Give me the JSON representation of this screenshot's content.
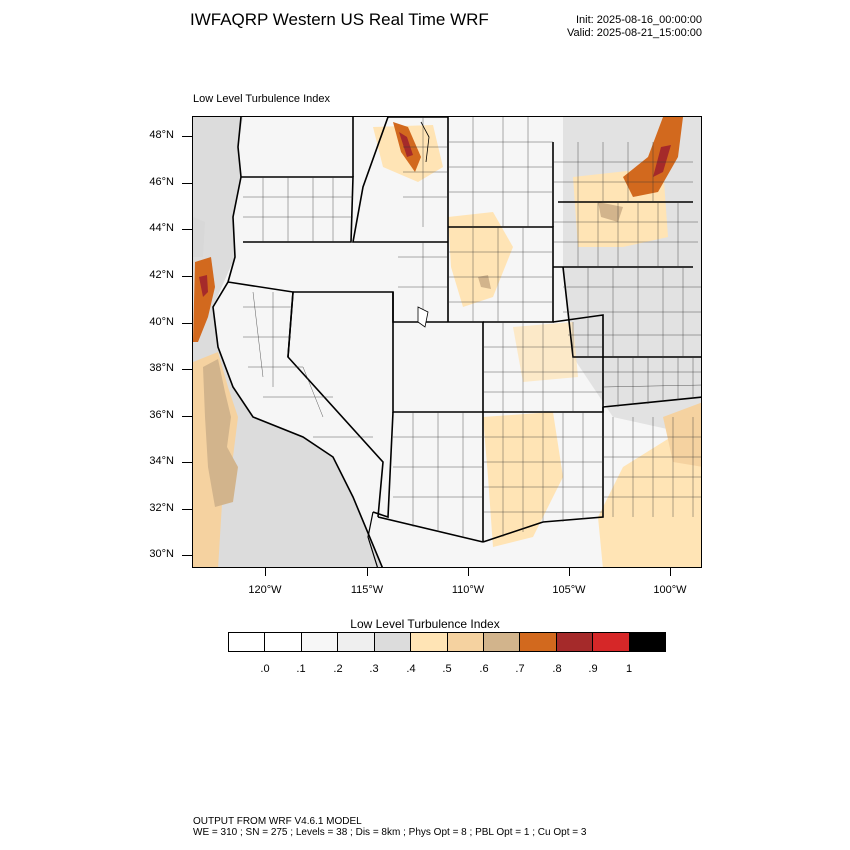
{
  "header": {
    "title": "IWFAQRP Western US Real Time WRF",
    "init": "Init: 2025-08-16_00:00:00",
    "valid": "Valid: 2025-08-21_15:00:00"
  },
  "plot": {
    "title": "Low Level Turbulence Index",
    "lat_labels": [
      "48°N",
      "46°N",
      "44°N",
      "42°N",
      "40°N",
      "38°N",
      "36°N",
      "34°N",
      "32°N",
      "30°N"
    ],
    "lon_labels": [
      "120°W",
      "115°W",
      "110°W",
      "105°W",
      "100°W"
    ]
  },
  "colorbar": {
    "title": "Low Level Turbulence Index",
    "labels": [
      ".0",
      ".1",
      ".2",
      ".3",
      ".4",
      ".5",
      ".6",
      ".7",
      ".8",
      ".9",
      "1"
    ],
    "colors": [
      "#ffffff",
      "#f7f7f7",
      "#efefef",
      "#dcdcdc",
      "#ffe4b5",
      "#f5d2a0",
      "#d2b48c",
      "#d2691e",
      "#a52a2a",
      "#d62728",
      "#000000"
    ]
  },
  "footer": {
    "line1": "OUTPUT FROM WRF V4.6.1 MODEL",
    "line2": "WE = 310 ; SN = 275 ; Levels = 38 ; Dis = 8km ; Phys Opt = 8 ; PBL Opt = 1 ; Cu Opt = 3"
  }
}
